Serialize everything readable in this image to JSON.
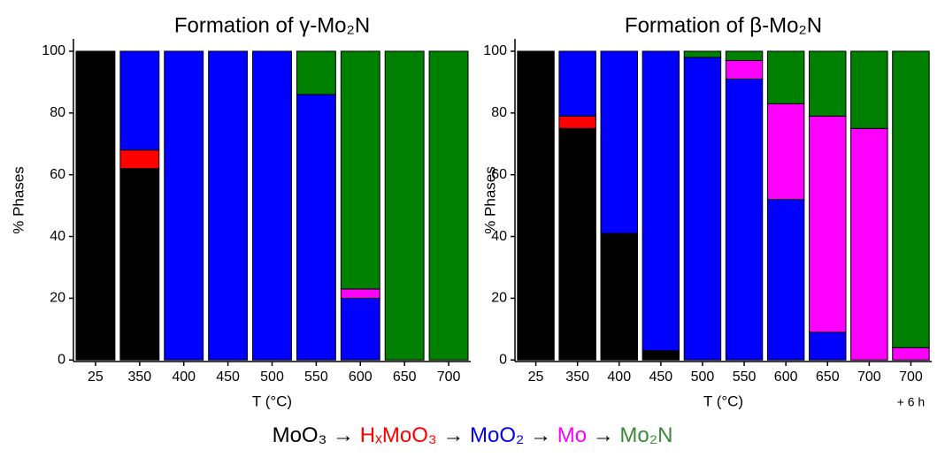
{
  "chart_data": [
    {
      "type": "stacked_bar",
      "title": "Formation of γ-Mo₂N",
      "x_label": "T (°C)",
      "y_label": "% Phases",
      "categories": [
        "25",
        "350",
        "400",
        "450",
        "500",
        "550",
        "600",
        "650",
        "700"
      ],
      "series": [
        {
          "color": "#000000",
          "values": [
            100,
            62,
            0,
            0,
            0,
            0,
            0,
            0,
            0
          ]
        },
        {
          "color": "#ff0000",
          "values": [
            0,
            6,
            0,
            0,
            0,
            0,
            0,
            0,
            0
          ]
        },
        {
          "color": "#0000ff",
          "values": [
            0,
            32,
            100,
            100,
            100,
            86,
            20,
            0,
            0
          ]
        },
        {
          "color": "#ff00ff",
          "values": [
            0,
            0,
            0,
            0,
            0,
            0,
            3,
            0,
            0
          ]
        },
        {
          "color": "#008000",
          "values": [
            0,
            0,
            0,
            0,
            0,
            14,
            77,
            100,
            100
          ]
        }
      ],
      "ylim": [
        -0.5,
        104
      ],
      "yticks": [
        0,
        20,
        40,
        60,
        80,
        100
      ]
    },
    {
      "type": "stacked_bar",
      "title": "Formation of β-Mo₂N",
      "x_label": "T (°C)",
      "y_label": "% Phases",
      "categories": [
        "25",
        "350",
        "400",
        "450",
        "500",
        "550",
        "600",
        "650",
        "700",
        "700"
      ],
      "annotation": "+ 6 h",
      "series": [
        {
          "color": "#000000",
          "values": [
            100,
            75,
            41,
            3,
            0,
            0,
            0,
            0,
            0,
            0
          ]
        },
        {
          "color": "#ff0000",
          "values": [
            0,
            4,
            0,
            0,
            0,
            0,
            0,
            0,
            0,
            0
          ]
        },
        {
          "color": "#0000ff",
          "values": [
            0,
            21,
            59,
            97,
            98,
            91,
            52,
            9,
            0,
            0
          ]
        },
        {
          "color": "#ff00ff",
          "values": [
            0,
            0,
            0,
            0,
            0,
            6,
            31,
            70,
            75,
            4
          ]
        },
        {
          "color": "#008000",
          "values": [
            0,
            0,
            0,
            0,
            2,
            3,
            17,
            21,
            25,
            96
          ]
        }
      ],
      "ylim": [
        -0.5,
        104
      ],
      "yticks": [
        0,
        20,
        40,
        60,
        80,
        100
      ]
    }
  ],
  "scheme": [
    {
      "text": "MoO₃",
      "color": "#000000"
    },
    {
      "text": "HₓMoO₃",
      "color": "#ff0000"
    },
    {
      "text": "MoO₂",
      "color": "#0000ff"
    },
    {
      "text": "Mo",
      "color": "#ff00ff"
    },
    {
      "text": "Mo₂N",
      "color": "#3a8a3a"
    }
  ]
}
